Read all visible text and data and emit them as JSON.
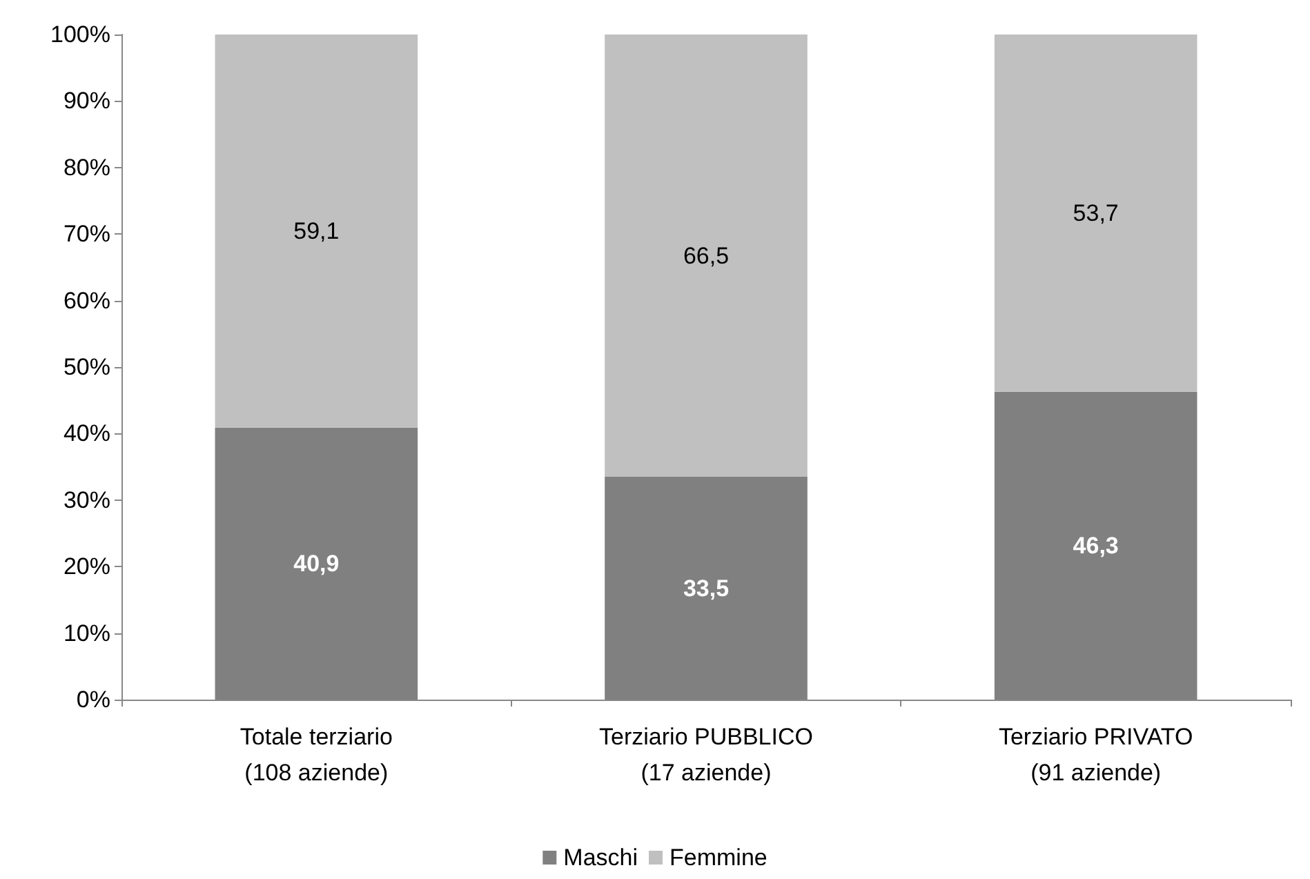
{
  "chart_data": {
    "type": "bar",
    "stacked": true,
    "categories": [
      "Totale terziario\n(108 aziende)",
      "Terziario PUBBLICO\n(17 aziende)",
      "Terziario PRIVATO\n(91 aziende)"
    ],
    "series": [
      {
        "name": "Maschi",
        "color": "#808080",
        "values": [
          40.9,
          33.5,
          46.3
        ],
        "value_labels": [
          "40,9",
          "33,5",
          "46,3"
        ]
      },
      {
        "name": "Femmine",
        "color": "#c0c0c0",
        "values": [
          59.1,
          66.5,
          53.7
        ],
        "value_labels": [
          "59,1",
          "66,5",
          "53,7"
        ]
      }
    ],
    "ylim": [
      0,
      100
    ],
    "yticks": [
      {
        "value": 0,
        "label": "0%"
      },
      {
        "value": 10,
        "label": "10%"
      },
      {
        "value": 20,
        "label": "20%"
      },
      {
        "value": 30,
        "label": "30%"
      },
      {
        "value": 40,
        "label": "40%"
      },
      {
        "value": 50,
        "label": "50%"
      },
      {
        "value": 60,
        "label": "60%"
      },
      {
        "value": 70,
        "label": "70%"
      },
      {
        "value": 80,
        "label": "80%"
      },
      {
        "value": 90,
        "label": "90%"
      },
      {
        "value": 100,
        "label": "100%"
      }
    ],
    "grid": false,
    "legend": "bottom"
  }
}
